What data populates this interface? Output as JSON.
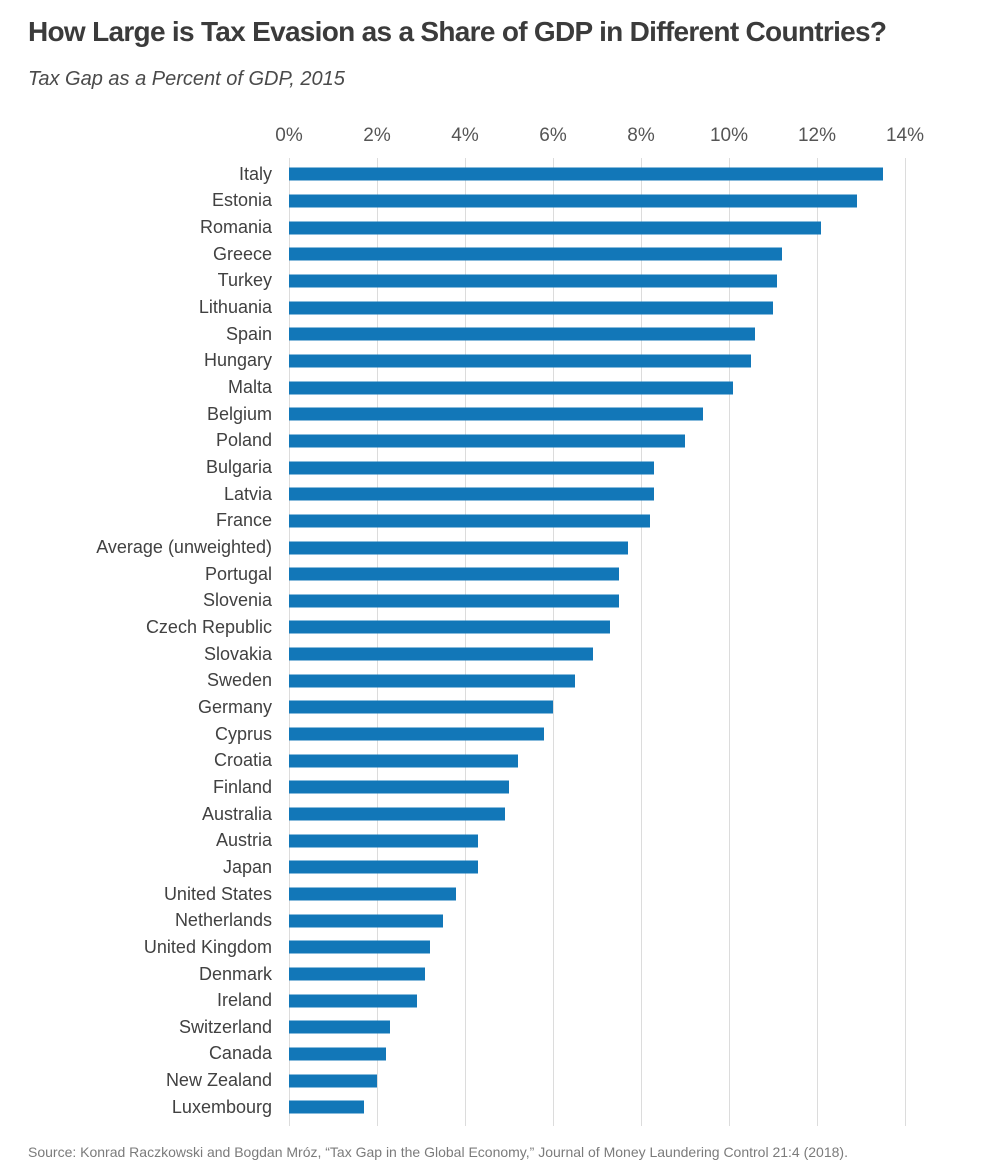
{
  "header": {
    "note": "static chart graphic"
  },
  "footer": {
    "source": "Source: Konrad Raczkowski and Bogdan Mróz, “Tax Gap in the Global Economy,” Journal of Money Laundering Control 21:4  (2018)."
  },
  "chart_data": {
    "type": "bar",
    "orientation": "horizontal",
    "title": "How Large is Tax Evasion as a Share of GDP in Different Countries?",
    "subtitle": "Tax Gap as a Percent of GDP,  2015",
    "xlabel": "",
    "ylabel": "",
    "legend": "none",
    "grid": "vertical-only",
    "axis": {
      "min": 0,
      "max": 14,
      "tick_step": 2,
      "ticks": [
        "0%",
        "2%",
        "4%",
        "6%",
        "8%",
        "10%",
        "12%",
        "14%"
      ]
    },
    "categories": [
      "Italy",
      "Estonia",
      "Romania",
      "Greece",
      "Turkey",
      "Lithuania",
      "Spain",
      "Hungary",
      "Malta",
      "Belgium",
      "Poland",
      "Bulgaria",
      "Latvia",
      "France",
      "Average (unweighted)",
      "Portugal",
      "Slovenia",
      "Czech Republic",
      "Slovakia",
      "Sweden",
      "Germany",
      "Cyprus",
      "Croatia",
      "Finland",
      "Australia",
      "Austria",
      "Japan",
      "United States",
      "Netherlands",
      "United Kingdom",
      "Denmark",
      "Ireland",
      "Switzerland",
      "Canada",
      "New Zealand",
      "Luxembourg"
    ],
    "values": [
      13.5,
      12.9,
      12.1,
      11.2,
      11.1,
      11.0,
      10.6,
      10.5,
      10.1,
      9.4,
      9.0,
      8.3,
      8.3,
      8.2,
      7.7,
      7.5,
      7.5,
      7.3,
      6.9,
      6.5,
      6.0,
      5.8,
      5.2,
      5.0,
      4.9,
      4.3,
      4.3,
      3.8,
      3.5,
      3.2,
      3.1,
      2.9,
      2.3,
      2.2,
      2.0,
      1.7
    ],
    "value_unit": "% of GDP",
    "colors": {
      "bar": "#1277b8",
      "grid": "#dcdcdc",
      "title_text": "#3b3b3b",
      "label_text": "#414141",
      "tick_text": "#555555",
      "source_text": "#7b7b7b"
    }
  }
}
